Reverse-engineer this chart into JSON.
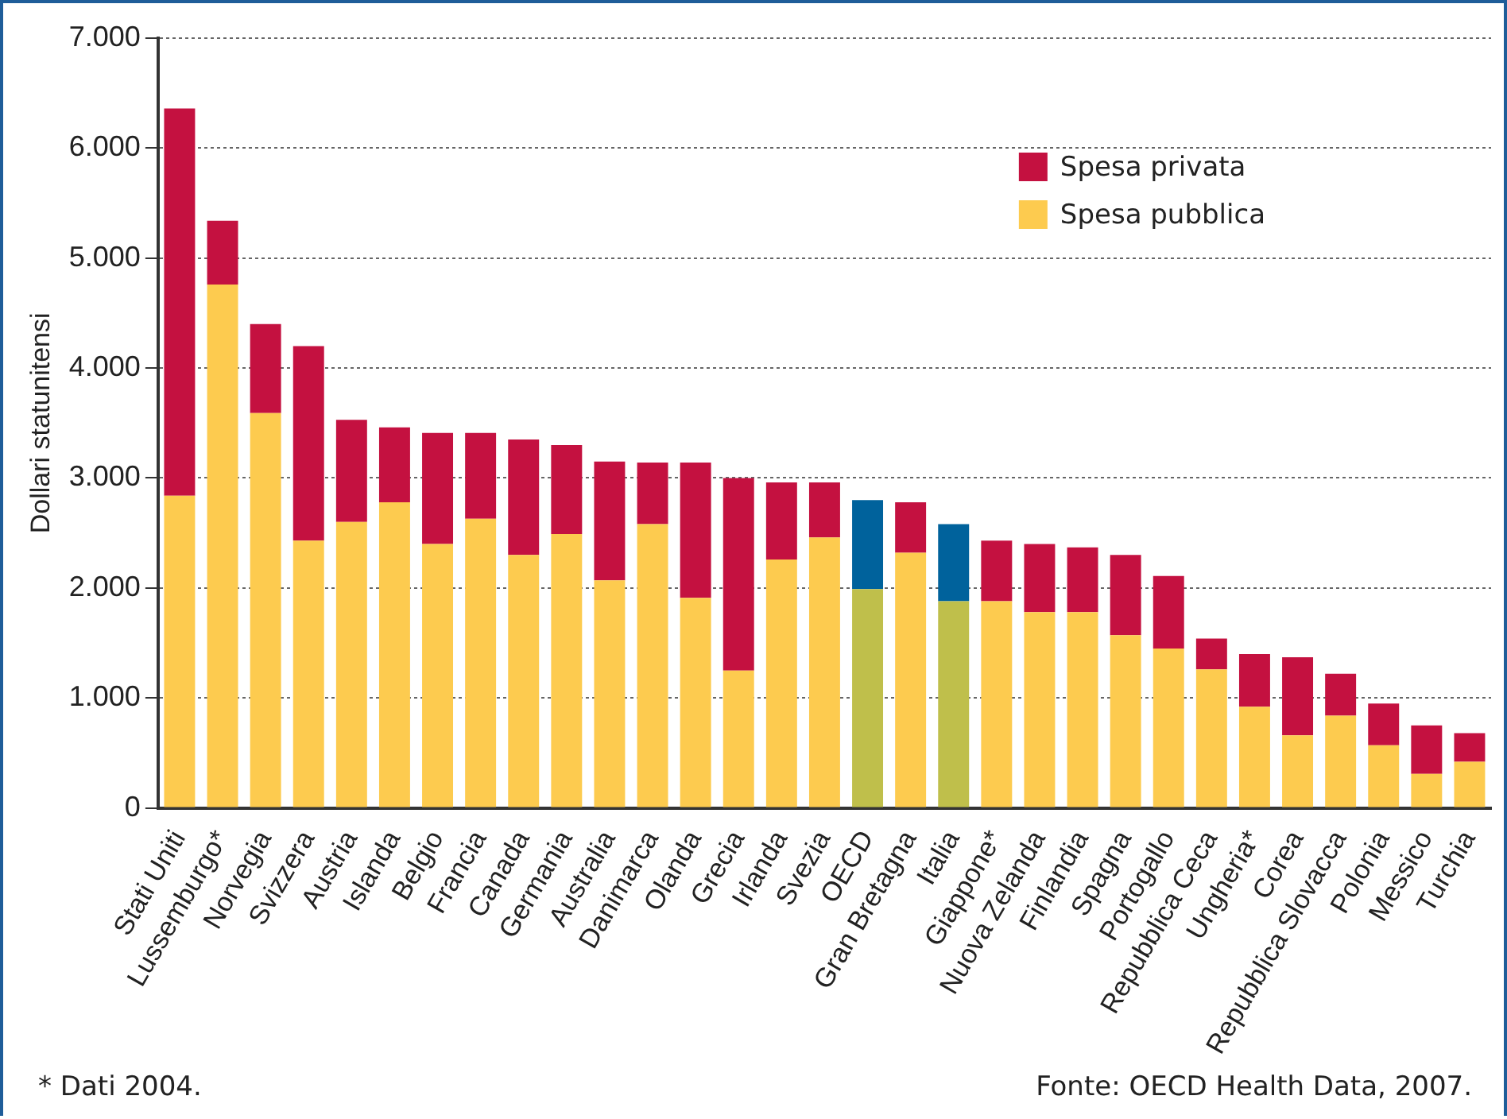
{
  "chart_data": {
    "type": "bar",
    "stacked": true,
    "ylabel": "Dollari statunitensi",
    "categories": [
      "Stati Uniti",
      "Lussemburgo*",
      "Norvegia",
      "Svizzera",
      "Austria",
      "Islanda",
      "Belgio",
      "Francia",
      "Canada",
      "Germania",
      "Australia",
      "Danimarca",
      "Olanda",
      "Grecia",
      "Irlanda",
      "Svezia",
      "OECD",
      "Gran Bretagna",
      "Italia",
      "Giappone*",
      "Nuova Zelanda",
      "Finlandia",
      "Spagna",
      "Portogallo",
      "Repubblica Ceca",
      "Ungheria*",
      "Corea",
      "Repubblica Slovacca",
      "Polonia",
      "Messico",
      "Turchia"
    ],
    "series": [
      {
        "name": "Spesa pubblica",
        "color": "#fdcb4f",
        "colors": [
          "#fdcb4f",
          "#fdcb4f",
          "#fdcb4f",
          "#fdcb4f",
          "#fdcb4f",
          "#fdcb4f",
          "#fdcb4f",
          "#fdcb4f",
          "#fdcb4f",
          "#fdcb4f",
          "#fdcb4f",
          "#fdcb4f",
          "#fdcb4f",
          "#fdcb4f",
          "#fdcb4f",
          "#fdcb4f",
          "#bfbf4b",
          "#fdcb4f",
          "#bfbf4b",
          "#fdcb4f",
          "#fdcb4f",
          "#fdcb4f",
          "#fdcb4f",
          "#fdcb4f",
          "#fdcb4f",
          "#fdcb4f",
          "#fdcb4f",
          "#fdcb4f",
          "#fdcb4f",
          "#fdcb4f",
          "#fdcb4f"
        ],
        "values": [
          2840,
          4760,
          3590,
          2430,
          2600,
          2780,
          2400,
          2630,
          2300,
          2490,
          2070,
          2580,
          1910,
          1250,
          2260,
          2460,
          1990,
          2320,
          1880,
          1880,
          1780,
          1780,
          1570,
          1450,
          1260,
          920,
          660,
          840,
          570,
          310,
          420
        ]
      },
      {
        "name": "Spesa privata",
        "color": "#c41140",
        "colors": [
          "#c41140",
          "#c41140",
          "#c41140",
          "#c41140",
          "#c41140",
          "#c41140",
          "#c41140",
          "#c41140",
          "#c41140",
          "#c41140",
          "#c41140",
          "#c41140",
          "#c41140",
          "#c41140",
          "#c41140",
          "#c41140",
          "#00629c",
          "#c41140",
          "#00629c",
          "#c41140",
          "#c41140",
          "#c41140",
          "#c41140",
          "#c41140",
          "#c41140",
          "#c41140",
          "#c41140",
          "#c41140",
          "#c41140",
          "#c41140",
          "#c41140"
        ],
        "values": [
          3520,
          580,
          810,
          1770,
          930,
          680,
          1010,
          780,
          1050,
          810,
          1080,
          560,
          1230,
          1750,
          700,
          500,
          810,
          460,
          700,
          550,
          620,
          590,
          730,
          660,
          280,
          480,
          710,
          380,
          380,
          440,
          260
        ]
      }
    ],
    "ylim": [
      0,
      7000
    ],
    "yticks": [
      {
        "value": 0,
        "label": "0"
      },
      {
        "value": 1000,
        "label": "1.000"
      },
      {
        "value": 2000,
        "label": "2.000"
      },
      {
        "value": 3000,
        "label": "3.000"
      },
      {
        "value": 4000,
        "label": "4.000"
      },
      {
        "value": 5000,
        "label": "5.000"
      },
      {
        "value": 6000,
        "label": "6.000"
      },
      {
        "value": 7000,
        "label": "7.000"
      }
    ],
    "grid": "y",
    "legend": "top right",
    "annotations": [
      "* Dati 2004.",
      "Fonte: OECD Health Data, 2007."
    ]
  }
}
